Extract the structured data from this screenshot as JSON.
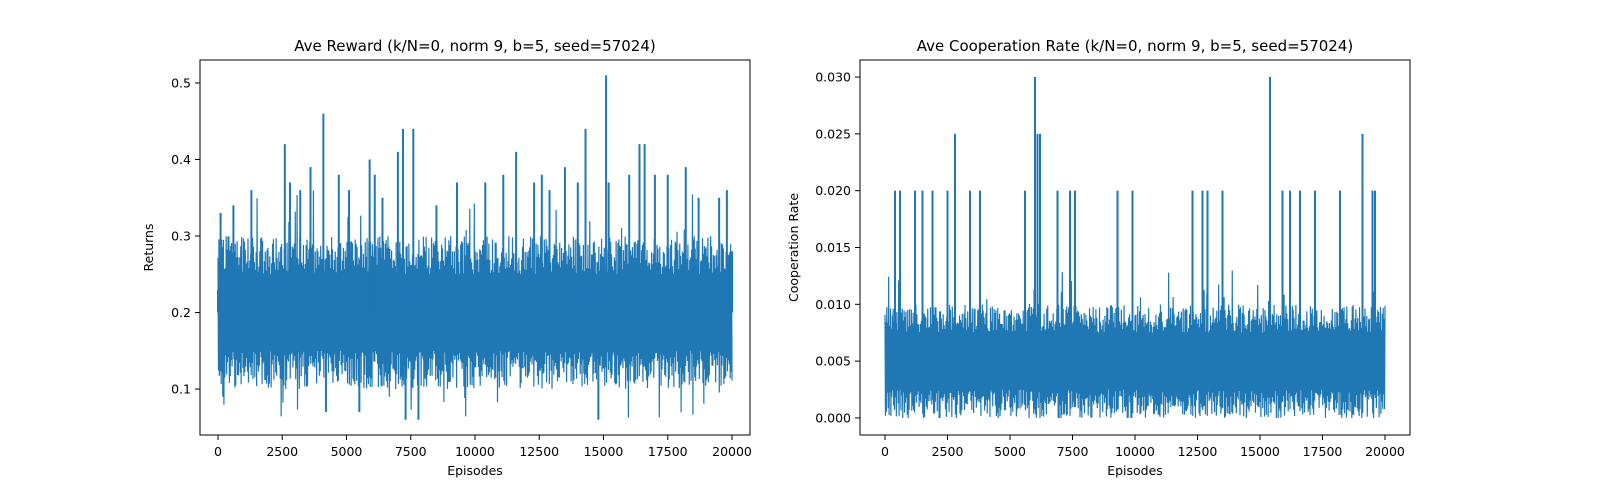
{
  "chart_data": [
    {
      "type": "line",
      "title": "Ave Reward (k/N=0, norm 9, b=5, seed=57024)",
      "xlabel": "Episodes",
      "ylabel": "Returns",
      "xlim": [
        -700,
        20700
      ],
      "ylim": [
        0.04,
        0.53
      ],
      "xticks": [
        0,
        2500,
        5000,
        7500,
        10000,
        12500,
        15000,
        17500,
        20000
      ],
      "yticks": [
        0.1,
        0.2,
        0.3,
        0.4,
        0.5
      ],
      "ytick_decimals": 1,
      "color": "#1f77b4",
      "grid": false,
      "n_episodes": 20000,
      "band": {
        "low_typical": 0.1,
        "high_typical": 0.3,
        "low_extreme": 0.06,
        "high_extreme": 0.51
      },
      "x": [
        0,
        100,
        200,
        600,
        1300,
        2600,
        2800,
        3200,
        3600,
        4100,
        4200,
        4700,
        5100,
        5500,
        5900,
        6100,
        6400,
        7000,
        7200,
        7300,
        7600,
        7800,
        8500,
        9300,
        10400,
        11100,
        11600,
        12300,
        12600,
        12900,
        13500,
        14000,
        14300,
        14800,
        15100,
        15200,
        16000,
        16400,
        16600,
        17000,
        17500,
        18200,
        18700,
        19500,
        19800,
        20000
      ],
      "y": [
        0.23,
        0.33,
        0.09,
        0.34,
        0.36,
        0.42,
        0.37,
        0.36,
        0.39,
        0.46,
        0.07,
        0.38,
        0.36,
        0.07,
        0.4,
        0.38,
        0.35,
        0.41,
        0.44,
        0.06,
        0.44,
        0.06,
        0.34,
        0.37,
        0.37,
        0.38,
        0.41,
        0.37,
        0.38,
        0.36,
        0.39,
        0.37,
        0.44,
        0.06,
        0.51,
        0.37,
        0.38,
        0.42,
        0.42,
        0.38,
        0.38,
        0.39,
        0.35,
        0.35,
        0.36,
        0.28
      ]
    },
    {
      "type": "line",
      "title": "Ave Cooperation Rate (k/N=0, norm 9, b=5, seed=57024)",
      "xlabel": "Episodes",
      "ylabel": "Cooperation Rate",
      "xlim": [
        -1000,
        21000
      ],
      "ylim": [
        -0.0015,
        0.0315
      ],
      "xticks": [
        0,
        2500,
        5000,
        7500,
        10000,
        12500,
        15000,
        17500,
        20000
      ],
      "yticks": [
        0.0,
        0.005,
        0.01,
        0.015,
        0.02,
        0.025,
        0.03
      ],
      "ytick_decimals": 3,
      "color": "#1f77b4",
      "grid": false,
      "n_episodes": 20000,
      "band": {
        "low_typical": 0.0,
        "high_typical": 0.01,
        "low_extreme": 0.0,
        "high_extreme": 0.03
      },
      "x": [
        400,
        600,
        1200,
        1500,
        1900,
        2500,
        2800,
        3400,
        3800,
        5600,
        6000,
        6100,
        6200,
        6900,
        7400,
        7600,
        9300,
        9900,
        12300,
        12700,
        12900,
        13500,
        15400,
        15900,
        16200,
        16600,
        17200,
        18200,
        19100,
        19500,
        19600
      ],
      "y": [
        0.02,
        0.02,
        0.02,
        0.02,
        0.02,
        0.02,
        0.025,
        0.02,
        0.02,
        0.02,
        0.03,
        0.025,
        0.025,
        0.02,
        0.02,
        0.02,
        0.02,
        0.02,
        0.02,
        0.02,
        0.02,
        0.02,
        0.03,
        0.02,
        0.02,
        0.02,
        0.02,
        0.02,
        0.025,
        0.02,
        0.02
      ]
    }
  ]
}
